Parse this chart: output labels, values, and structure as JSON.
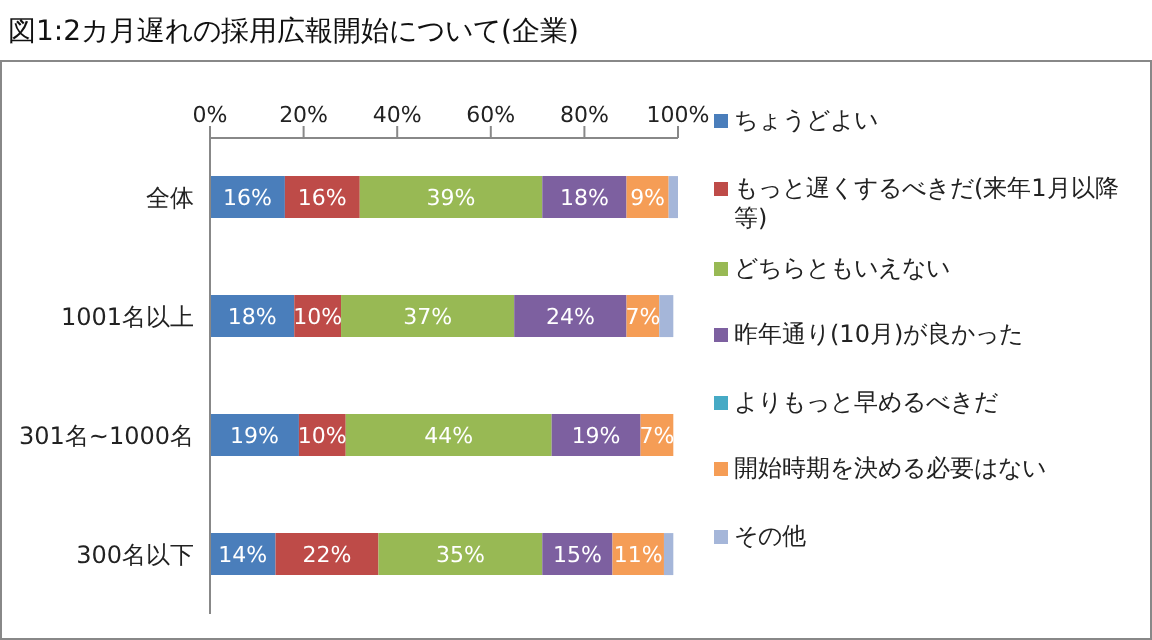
{
  "chart_data": {
    "type": "bar",
    "title": "図1:2カ月遅れの採用広報開始について(企業)",
    "orientation": "horizontal",
    "stacked": true,
    "legend": "right",
    "categories": [
      "全体",
      "1001名以上",
      "301名~1000名",
      "300名以下"
    ],
    "xlim": [
      0,
      100
    ],
    "xticks": [
      {
        "value": 0,
        "label": "0%"
      },
      {
        "value": 20,
        "label": "20%"
      },
      {
        "value": 40,
        "label": "40%"
      },
      {
        "value": 60,
        "label": "60%"
      },
      {
        "value": 80,
        "label": "80%"
      },
      {
        "value": 100,
        "label": "100%"
      }
    ],
    "series": [
      {
        "name": "ちょうどよい",
        "color": "#4a7ebb",
        "values": [
          16,
          18,
          19,
          14
        ],
        "value_labels": [
          "16%",
          "18%",
          "19%",
          "14%"
        ]
      },
      {
        "name": "もっと遅くするべきだ(来年1月以降等)",
        "color": "#be4b48",
        "values": [
          16,
          10,
          10,
          22
        ],
        "value_labels": [
          "16%",
          "10%",
          "10%",
          "22%"
        ]
      },
      {
        "name": "どちらともいえない",
        "color": "#98b954",
        "values": [
          39,
          37,
          44,
          35
        ],
        "value_labels": [
          "39%",
          "37%",
          "44%",
          "35%"
        ]
      },
      {
        "name": "昨年通り(10月)が良かった",
        "color": "#7d60a0",
        "values": [
          18,
          24,
          19,
          15
        ],
        "value_labels": [
          "18%",
          "24%",
          "19%",
          "15%"
        ]
      },
      {
        "name": "よりもっと早めるべきだ",
        "color": "#46aac5",
        "values": [
          0,
          0,
          0,
          0
        ],
        "value_labels": [
          null,
          null,
          null,
          null
        ]
      },
      {
        "name": "開始時期を決める必要はない",
        "color": "#f59d56",
        "values": [
          9,
          7,
          7,
          11
        ],
        "value_labels": [
          "9%",
          "7%",
          "7%",
          "11%"
        ]
      },
      {
        "name": "その他",
        "color": "#a5b6d9",
        "values": [
          2,
          3,
          0,
          2
        ],
        "value_labels": [
          null,
          null,
          null,
          null
        ]
      }
    ]
  }
}
